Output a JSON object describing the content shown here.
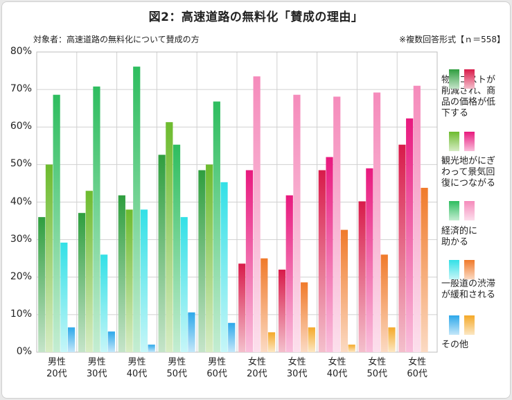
{
  "title": "図2：高速道路の無料化「賛成の理由」",
  "subtitle": "対象者：高速道路の無料化について賛成の方",
  "note": "※複数回答形式【ｎ＝558】",
  "chart_data": {
    "type": "bar",
    "ylim": [
      0,
      80
    ],
    "y_ticks": [
      "0%",
      "10%",
      "20%",
      "30%",
      "40%",
      "50%",
      "60%",
      "70%",
      "80%"
    ],
    "grid": true,
    "legend_position": "right",
    "categories": [
      [
        "男性",
        "20代"
      ],
      [
        "男性",
        "30代"
      ],
      [
        "男性",
        "40代"
      ],
      [
        "男性",
        "50代"
      ],
      [
        "男性",
        "60代"
      ],
      [
        "女性",
        "20代"
      ],
      [
        "女性",
        "30代"
      ],
      [
        "女性",
        "40代"
      ],
      [
        "女性",
        "50代"
      ],
      [
        "女性",
        "60代"
      ]
    ],
    "series": [
      {
        "name": "物流コストが削減され、商品の価格が低下する",
        "legend_lines": [
          "物流コストが",
          "削減され、商",
          "品の価格が低",
          "下する"
        ],
        "values": [
          36.0,
          37.1,
          41.8,
          52.6,
          48.5,
          23.6,
          22.0,
          48.5,
          40.2,
          55.3
        ],
        "male_color": "#2f9e3f",
        "female_color": "#d81b4a"
      },
      {
        "name": "観光地がにぎわって景気回復につながる",
        "legend_lines": [
          "観光地がにぎ",
          "わって景気回",
          "復につながる"
        ],
        "values": [
          50.0,
          43.0,
          38.0,
          61.3,
          50.0,
          48.5,
          41.8,
          52.0,
          49.0,
          62.3
        ],
        "male_color": "#6dbb2e",
        "female_color": "#e8197e"
      },
      {
        "name": "経済的に助かる",
        "legend_lines": [
          "経済的に",
          "助かる"
        ],
        "values": [
          68.6,
          70.8,
          76.1,
          55.3,
          66.8,
          73.5,
          68.6,
          68.1,
          69.2,
          71.0
        ],
        "male_color": "#2ebd5f",
        "female_color": "#f58bbb"
      },
      {
        "name": "一般道の渋滞が緩和される",
        "legend_lines": [
          "一般道の渋滞",
          "が緩和される"
        ],
        "values": [
          29.2,
          26.0,
          38.0,
          36.0,
          45.3,
          25.0,
          18.6,
          32.6,
          26.0,
          43.8
        ],
        "male_color": "#33e0e6",
        "female_color": "#f07a2a"
      },
      {
        "name": "その他",
        "legend_lines": [
          "その他"
        ],
        "values": [
          6.6,
          5.5,
          2.0,
          10.6,
          7.8,
          5.3,
          6.6,
          2.0,
          6.6,
          0
        ],
        "male_color": "#2da8ea",
        "female_color": "#f4a928"
      }
    ]
  }
}
